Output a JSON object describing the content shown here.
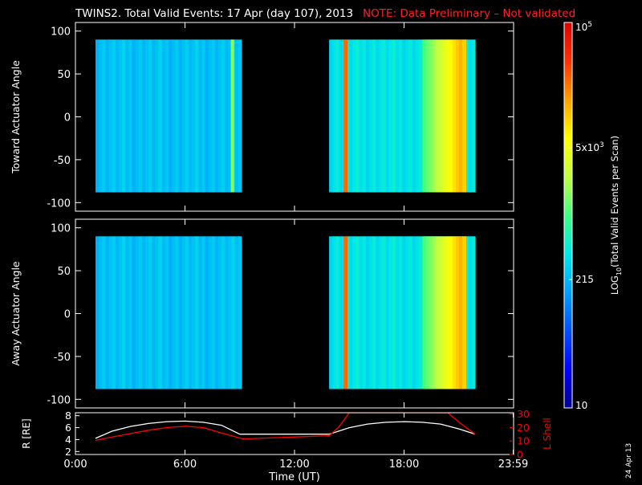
{
  "header": {
    "title": "TWINS2. Total Valid Events: 17 Apr (day 107), 2013",
    "note": "NOTE: Data Preliminary – Not validated",
    "note_color": "#ff2020"
  },
  "side_date": "24 Apr 13",
  "colorbar": {
    "label": "LOG10(Total Valid Events per Scan)",
    "label_main": "LOG",
    "label_sub": "10",
    "label_rest": "(Total Valid Events per Scan)",
    "ticks": [
      {
        "value": 100000,
        "label_base": "10",
        "label_exp": "5"
      },
      {
        "value": 5000,
        "label_base": "5x10",
        "label_exp": "3"
      },
      {
        "value": 215,
        "label_base": "215",
        "label_exp": ""
      },
      {
        "value": 10,
        "label_base": "10",
        "label_exp": ""
      }
    ],
    "range": [
      10,
      100000
    ],
    "scale": "log",
    "colors": [
      "#00008c",
      "#0000ff",
      "#0050ff",
      "#00a0ff",
      "#00e8e8",
      "#40ff80",
      "#c0ff40",
      "#ffff00",
      "#ffa000",
      "#ff3000",
      "#e00000"
    ]
  },
  "chart_data": [
    {
      "type": "heatmap",
      "name": "toward",
      "ylabel": "Toward Actuator Angle",
      "xlim": [
        0,
        24
      ],
      "ylim": [
        -110,
        110
      ],
      "yticks": [
        100,
        50,
        0,
        -50,
        -100
      ],
      "ytick_labels": [
        "100",
        "50",
        "0",
        "-50",
        "-100"
      ],
      "data_blocks": [
        {
          "t_start": 1.1,
          "t_end": 9.1,
          "angle_min": -88,
          "angle_max": 90,
          "level": 0.35
        },
        {
          "t_start": 13.9,
          "t_end": 21.9,
          "angle_min": -88,
          "angle_max": 90,
          "level": 0.4
        }
      ],
      "features": [
        {
          "t": 14.8,
          "level": 0.85,
          "desc": "bright band"
        },
        {
          "t": 8.6,
          "level": 0.55,
          "desc": "cyan band"
        },
        {
          "t": 19.5,
          "level": 0.6,
          "desc": "green band"
        },
        {
          "t": 21.3,
          "level": 0.75,
          "desc": "yellow band"
        }
      ]
    },
    {
      "type": "heatmap",
      "name": "away",
      "ylabel": "Away Actuator Angle",
      "xlim": [
        0,
        24
      ],
      "ylim": [
        -110,
        110
      ],
      "yticks": [
        100,
        50,
        0,
        -50,
        -100
      ],
      "ytick_labels": [
        "100",
        "50",
        "0",
        "-50",
        "-100"
      ],
      "data_blocks": [
        {
          "t_start": 1.1,
          "t_end": 9.1,
          "angle_min": -88,
          "angle_max": 90,
          "level": 0.35
        },
        {
          "t_start": 13.9,
          "t_end": 21.9,
          "angle_min": -88,
          "angle_max": 90,
          "level": 0.4
        }
      ],
      "features": [
        {
          "t": 14.8,
          "level": 0.85,
          "desc": "bright band"
        },
        {
          "t": 19.5,
          "level": 0.6,
          "desc": "green band"
        },
        {
          "t": 21.3,
          "level": 0.75,
          "desc": "yellow band"
        }
      ]
    },
    {
      "type": "line",
      "name": "orbit",
      "xlabel": "Time (UT)",
      "xlim": [
        0,
        24
      ],
      "xticks": [
        0,
        6,
        12,
        18,
        23.98
      ],
      "xtick_labels": [
        "0:00",
        "6:00",
        "12:00",
        "18:00",
        "23:59"
      ],
      "y_left": {
        "label": "R [RE]",
        "ylim": [
          1.5,
          8.5
        ],
        "ticks": [
          2,
          4,
          6,
          8
        ],
        "tick_labels": [
          "2",
          "4",
          "6",
          "8"
        ]
      },
      "y_right": {
        "label": "L Shell",
        "ylim": [
          0,
          31
        ],
        "ticks": [
          0,
          10,
          20,
          30
        ],
        "tick_labels": [
          "0",
          "10",
          "20",
          "30"
        ],
        "color": "#ff0000"
      },
      "series": [
        {
          "axis": "left",
          "color": "#ffffff",
          "x": [
            1.1,
            2,
            3,
            4,
            5,
            6,
            7,
            8,
            9,
            10,
            11,
            12,
            13,
            13.9,
            15,
            16,
            17,
            18,
            19,
            20,
            21,
            21.9
          ],
          "y": [
            4.2,
            5.4,
            6.2,
            6.7,
            7.0,
            7.1,
            6.9,
            6.4,
            4.9,
            4.9,
            4.9,
            4.9,
            4.9,
            4.9,
            6.0,
            6.6,
            6.9,
            7.0,
            6.9,
            6.6,
            5.8,
            4.9
          ]
        },
        {
          "axis": "right",
          "color": "#ff0000",
          "x": [
            1.1,
            2,
            3,
            4,
            5,
            6,
            7,
            8,
            9.2,
            10,
            11,
            12,
            13,
            13.9,
            14.4,
            15.0,
            20.4,
            21.0,
            21.9
          ],
          "y": [
            10.5,
            13,
            15.5,
            18,
            20,
            21,
            20,
            16,
            11.5,
            12,
            12.5,
            13,
            13.5,
            14,
            20,
            31,
            31,
            24,
            15
          ]
        }
      ]
    }
  ]
}
